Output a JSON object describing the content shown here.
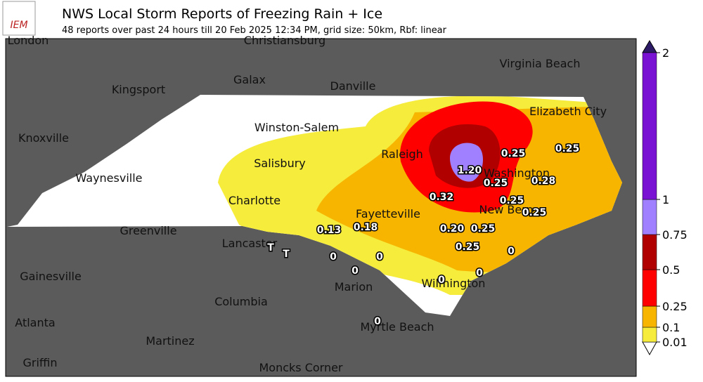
{
  "header": {
    "logo": "IEM",
    "title": "NWS Local Storm Reports of Freezing Rain + Ice",
    "subtitle": "48 reports over past 24 hours till 20 Feb 2025 12:34 PM, grid size: 50km, Rbf: linear"
  },
  "map": {
    "cities": [
      "London",
      "Christiansburg",
      "Galax",
      "Danville",
      "Virginia Beach",
      "Kingsport",
      "Elizabeth City",
      "Winston-Salem",
      "Knoxville",
      "Raleigh",
      "Salisbury",
      "Waynesville",
      "Charlotte",
      "Washington",
      "Fayetteville",
      "New Bern",
      "Greenville",
      "Lancaster",
      "Gainesville",
      "Marion",
      "Wilmington",
      "Columbia",
      "Atlanta",
      "Myrtle Beach",
      "Martinez",
      "Griffin",
      "Moncks Corner"
    ],
    "reports": [
      "0.25",
      "0.25",
      "1.20",
      "0.25",
      "0.28",
      "0.32",
      "0.25",
      "0.25",
      "0.13",
      "0.18",
      "0.20",
      "0.25",
      "0.25",
      "0",
      "T",
      "T",
      "0",
      "0",
      "0",
      "0",
      "0",
      "0"
    ],
    "colorbar": {
      "ticks": [
        0.01,
        0.1,
        0.25,
        0.5,
        0.75,
        1,
        2
      ],
      "colors": [
        "#f5ec3c",
        "#f7b500",
        "#ff0000",
        "#b00000",
        "#a080ff",
        "#7a12d4"
      ]
    }
  }
}
